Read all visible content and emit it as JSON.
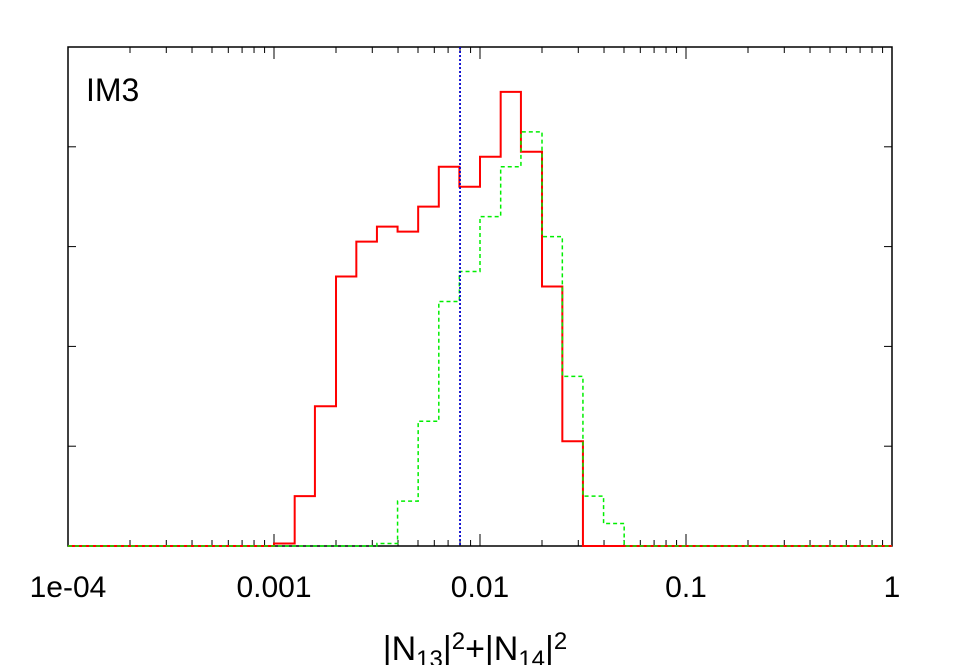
{
  "chart_data": {
    "type": "line",
    "title": "",
    "panel_label": "IM3",
    "xlabel": {
      "parts": [
        {
          "t": "|N",
          "sub": false,
          "sup": false
        },
        {
          "t": "13",
          "sub": true,
          "sup": false
        },
        {
          "t": "|",
          "sub": false,
          "sup": false
        },
        {
          "t": "2",
          "sub": false,
          "sup": true
        },
        {
          "t": "+|N",
          "sub": false,
          "sup": false
        },
        {
          "t": "14",
          "sub": true,
          "sup": false
        },
        {
          "t": "|",
          "sub": false,
          "sup": false
        },
        {
          "t": "2",
          "sub": false,
          "sup": true
        }
      ]
    },
    "ylabel": "",
    "x_scale": "log",
    "xlim": [
      0.0001,
      1
    ],
    "ylim": [
      0,
      1
    ],
    "x_ticks": [
      {
        "value": 0.0001,
        "label": "1e-04"
      },
      {
        "value": 0.001,
        "label": "0.001"
      },
      {
        "value": 0.01,
        "label": "0.01"
      },
      {
        "value": 0.1,
        "label": "0.1"
      },
      {
        "value": 1,
        "label": "1"
      }
    ],
    "y_ticks": [
      0.2,
      0.4,
      0.6,
      0.8
    ],
    "grid": false,
    "reference_line": {
      "x": 0.008,
      "color": "#0000cc",
      "style": "dotted"
    },
    "bin_edges": [
      0.001,
      0.00126,
      0.00158,
      0.002,
      0.00251,
      0.00316,
      0.00398,
      0.00501,
      0.00631,
      0.00794,
      0.01,
      0.0126,
      0.0158,
      0.02,
      0.0251,
      0.0316
    ],
    "series": [
      {
        "color": "#ff0000",
        "style": "solid",
        "values": [
          0.005,
          0.1,
          0.28,
          0.54,
          0.61,
          0.64,
          0.63,
          0.68,
          0.76,
          0.72,
          0.78,
          0.91,
          0.79,
          0.52,
          0.21,
          0.05
        ]
      },
      {
        "color": "#00ee00",
        "style": "dashed",
        "values": [
          0.0,
          0.0,
          0.0,
          0.0,
          0.0,
          0.005,
          0.09,
          0.25,
          0.49,
          0.55,
          0.66,
          0.76,
          0.83,
          0.62,
          0.34,
          0.1,
          0.045
        ]
      }
    ],
    "green_edges": [
      0.001,
      0.00126,
      0.00158,
      0.002,
      0.00251,
      0.00316,
      0.00398,
      0.00501,
      0.00631,
      0.00794,
      0.01,
      0.0126,
      0.0158,
      0.02,
      0.0251,
      0.0316,
      0.0398,
      0.0501
    ]
  }
}
